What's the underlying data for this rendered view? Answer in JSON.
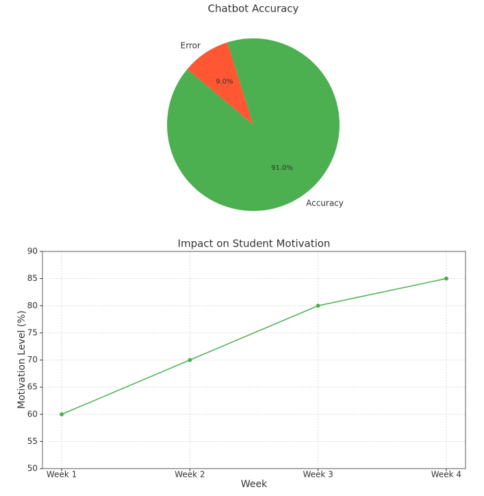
{
  "chart_data": [
    {
      "type": "pie",
      "title": "Chatbot Accuracy",
      "categories": [
        "Accuracy",
        "Error"
      ],
      "values": [
        91,
        9
      ],
      "value_labels": [
        "91.0%",
        "9.0%"
      ],
      "colors": [
        "#4caf50",
        "#ff5733"
      ],
      "startangle": 140
    },
    {
      "type": "line",
      "title": "Impact on Student Motivation",
      "x_label": "Week",
      "y_label": "Motivation Level (%)",
      "categories": [
        "Week 1",
        "Week 2",
        "Week 3",
        "Week 4"
      ],
      "values": [
        60,
        70,
        80,
        85
      ],
      "color": "#4caf50",
      "ylim": [
        50,
        90
      ],
      "yticks": [
        50,
        55,
        60,
        65,
        70,
        75,
        80,
        85,
        90
      ],
      "grid": true
    }
  ]
}
